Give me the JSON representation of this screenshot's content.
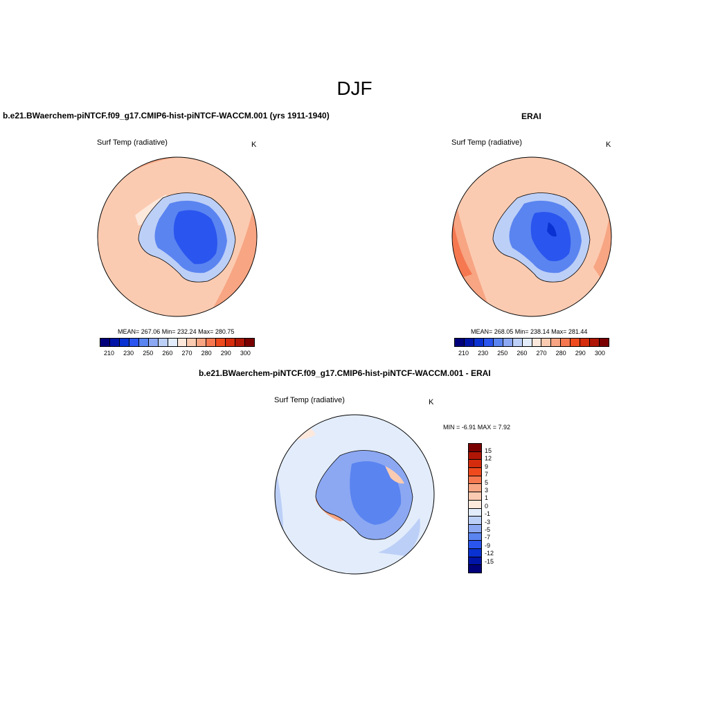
{
  "figure": {
    "title": "DJF"
  },
  "panels": {
    "model": {
      "title": "b.e21.BWaerchem-piNTCF.f09_g17.CMIP6-hist-piNTCF-WACCM.001 (yrs 1911-1940)",
      "var_label": "Surf Temp (radiative)",
      "units": "K",
      "stats": "MEAN= 267.06  Min= 232.24  Max= 280.75"
    },
    "obs": {
      "title": "ERAI",
      "var_label": "Surf Temp (radiative)",
      "units": "K",
      "stats": "MEAN= 268.05  Min= 238.14  Max= 281.44"
    },
    "diff": {
      "title": "b.e21.BWaerchem-piNTCF.f09_g17.CMIP6-hist-piNTCF-WACCM.001 - ERAI",
      "var_label": "Surf Temp (radiative)",
      "units": "K",
      "stats": "MIN =  -6.91 MAX =   7.92"
    }
  },
  "colorbars": {
    "abs": {
      "colors": [
        "#00007a",
        "#0014a8",
        "#0a32d2",
        "#2a55ee",
        "#5a84f0",
        "#8ca8f2",
        "#bccff7",
        "#e2ecfb",
        "#fde8dc",
        "#fbcbb1",
        "#f7a583",
        "#f57850",
        "#ee4a1e",
        "#d42c0c",
        "#b01606",
        "#7a0000"
      ],
      "labels": [
        "210",
        "230",
        "250",
        "260",
        "270",
        "280",
        "290",
        "300"
      ]
    },
    "diff": {
      "colors": [
        "#7a0000",
        "#b01606",
        "#d42c0c",
        "#ee4a1e",
        "#f57850",
        "#f7a583",
        "#fbcbb1",
        "#fde8dc",
        "#e2ecfb",
        "#bccff7",
        "#8ca8f2",
        "#5a84f0",
        "#2a55ee",
        "#0a32d2",
        "#0014a8",
        "#00007a"
      ],
      "labels": [
        "15",
        "12",
        "9",
        "7",
        "5",
        "3",
        "1",
        "0",
        "-1",
        "-3",
        "-5",
        "-7",
        "-9",
        "-12",
        "-15"
      ]
    }
  },
  "map": {
    "projection": "south-polar-stereographic",
    "land_outline": "Antarctica"
  }
}
